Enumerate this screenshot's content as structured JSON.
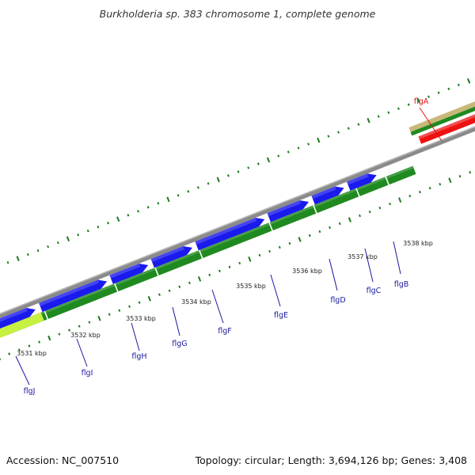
{
  "title": "Burkholderia sp. 383 chromosome 1, complete genome",
  "footer": {
    "accession": "Accession: NC_007510",
    "stats": "Topology: circular; Length: 3,694,126 bp; Genes: 3,408"
  },
  "colors": {
    "forward_cds": "#1a1aee",
    "reverse_cds": "#1f8a1f",
    "highlight_gene": "#ee1111",
    "backbone": "#8a8a8a",
    "tick": "#1e7a1e",
    "label_normal": "#1a1aa0",
    "label_highlight": "#dd1111",
    "misc_feature": "#c8b878",
    "yellow_feature": "#c8f040"
  },
  "scale_labels": [
    {
      "text": "3531 kbp"
    },
    {
      "text": "3532 kbp"
    },
    {
      "text": "3533 kbp"
    },
    {
      "text": "3534 kbp"
    },
    {
      "text": "3535 kbp"
    },
    {
      "text": "3536 kbp"
    },
    {
      "text": "3537 kbp"
    },
    {
      "text": "3538 kbp"
    }
  ],
  "gene_labels": [
    {
      "name": "flgJ"
    },
    {
      "name": "flgI"
    },
    {
      "name": "flgH"
    },
    {
      "name": "flgG"
    },
    {
      "name": "flgF"
    },
    {
      "name": "flgE"
    },
    {
      "name": "flgD"
    },
    {
      "name": "flgC"
    },
    {
      "name": "flgB"
    },
    {
      "name": "flgA",
      "highlight": true
    }
  ]
}
